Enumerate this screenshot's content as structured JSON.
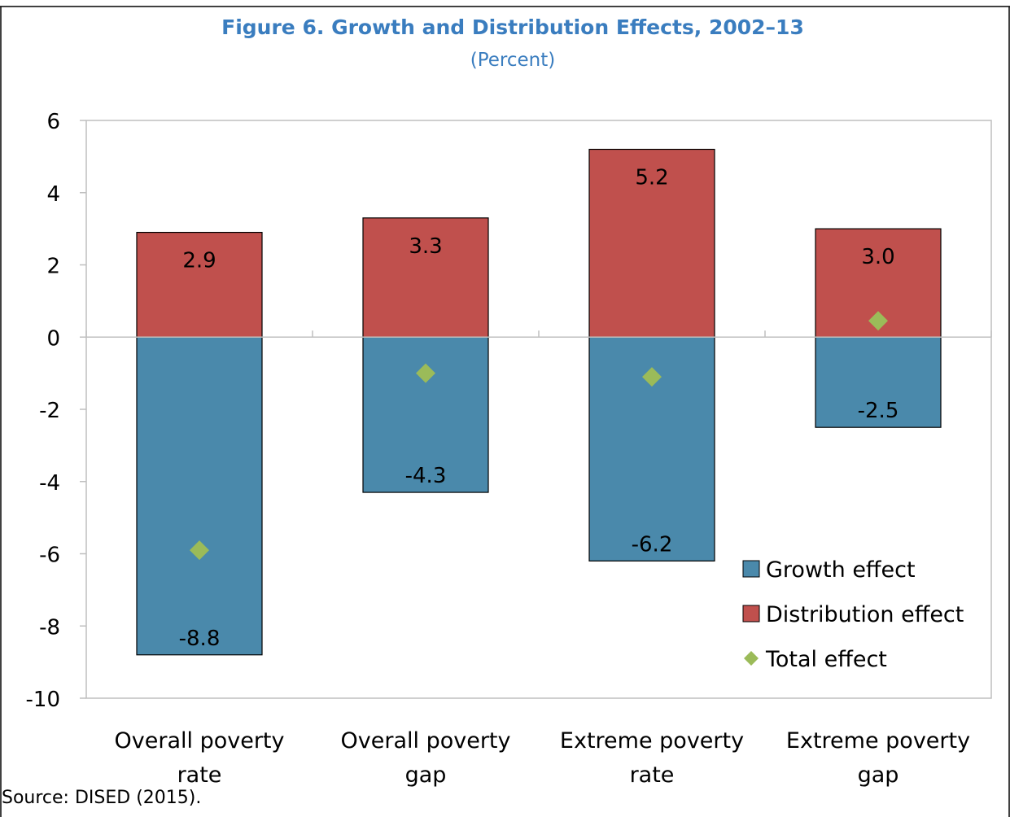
{
  "source": "Source: DISED (2015).",
  "chart_data": {
    "type": "bar",
    "stacked": true,
    "title": "Figure 6. Growth and Distribution Effects, 2002–13",
    "subtitle": "(Percent)",
    "categories": [
      [
        "Overall poverty",
        "rate"
      ],
      [
        "Overall poverty",
        "gap"
      ],
      [
        "Extreme poverty",
        "rate"
      ],
      [
        "Extreme poverty",
        "gap"
      ]
    ],
    "series": [
      {
        "name": "Growth effect",
        "kind": "bar",
        "color": "#4a89ab",
        "values": [
          -8.8,
          -4.3,
          -6.2,
          -2.5
        ],
        "labels": [
          "-8.8",
          "-4.3",
          "-6.2",
          "-2.5"
        ]
      },
      {
        "name": "Distribution effect",
        "kind": "bar",
        "color": "#c0504d",
        "values": [
          2.9,
          3.3,
          5.2,
          3.0
        ],
        "labels": [
          "2.9",
          "3.3",
          "5.2",
          "3.0"
        ]
      },
      {
        "name": "Total effect",
        "kind": "marker",
        "color": "#9bbb59",
        "values": [
          -5.9,
          -1.0,
          -1.1,
          0.45
        ]
      }
    ],
    "ylim": [
      -10,
      6
    ],
    "yticks": [
      6,
      4,
      2,
      0,
      -2,
      -4,
      -6,
      -8,
      -10
    ],
    "grid": false,
    "legend": "bottom-right",
    "title_color": "#3a7dbf"
  }
}
